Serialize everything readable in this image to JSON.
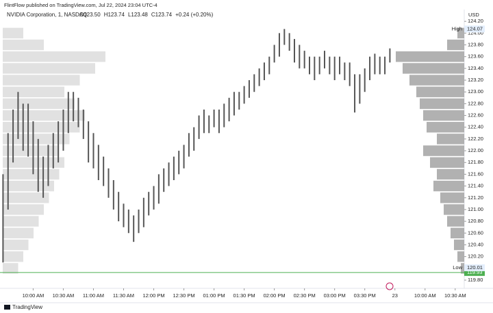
{
  "chart_data": {
    "type": "range-bar",
    "published": "FlintFlow published on TradingView.com, Jul 22, 2024 23:04 UTC-4",
    "symbol": "NVIDIA Corporation, 1, NASDAQ",
    "ohlc_text": [
      "O123.50",
      "H123.74",
      "L123.48",
      "C123.74",
      "+0.24 (+0.20%)"
    ],
    "currency": "USD",
    "footer": "TradingView",
    "color": "#555555",
    "x": [
      0,
      5,
      10,
      15,
      20,
      25,
      30,
      35,
      40,
      45,
      50,
      55,
      60,
      65,
      70,
      75,
      80,
      85,
      90,
      95,
      100,
      105,
      110,
      115,
      120,
      125,
      130,
      135,
      140,
      145,
      150,
      155,
      160,
      165,
      170,
      175,
      180,
      185,
      190,
      195,
      200,
      205,
      210,
      215,
      220,
      225,
      230,
      235,
      240,
      245,
      250,
      255,
      260,
      265,
      270,
      275,
      280,
      285,
      290,
      295,
      300,
      305,
      310,
      315,
      320,
      325,
      330,
      335,
      340,
      345,
      350,
      355,
      360,
      365,
      370,
      375,
      380,
      385
    ],
    "low": [
      120.1,
      121.0,
      121.8,
      122.2,
      122.0,
      121.9,
      121.6,
      121.3,
      121.2,
      121.4,
      121.7,
      121.8,
      122.0,
      122.3,
      122.5,
      122.4,
      122.2,
      121.8,
      121.7,
      121.5,
      121.4,
      121.2,
      121.0,
      120.8,
      120.7,
      120.6,
      120.45,
      120.6,
      120.7,
      120.9,
      121.0,
      121.1,
      121.3,
      121.4,
      121.5,
      121.6,
      121.7,
      121.9,
      122.0,
      122.2,
      122.3,
      122.3,
      122.4,
      122.3,
      122.4,
      122.5,
      122.6,
      122.7,
      122.8,
      122.9,
      123.0,
      123.1,
      123.2,
      123.3,
      123.5,
      123.6,
      123.8,
      123.7,
      123.5,
      123.4,
      123.4,
      123.3,
      123.2,
      123.3,
      123.4,
      123.3,
      123.2,
      123.3,
      123.2,
      123.1,
      122.65,
      122.8,
      123.0,
      123.2,
      123.3,
      123.3,
      123.3,
      123.5
    ],
    "high": [
      121.6,
      122.3,
      122.7,
      123.0,
      122.8,
      122.8,
      122.5,
      122.2,
      121.9,
      122.1,
      122.3,
      122.5,
      122.7,
      123.0,
      123.0,
      122.9,
      122.7,
      122.5,
      122.3,
      122.1,
      121.9,
      121.7,
      121.5,
      121.3,
      121.1,
      121.0,
      120.9,
      121.0,
      121.2,
      121.3,
      121.4,
      121.6,
      121.7,
      121.8,
      121.9,
      122.0,
      122.1,
      122.3,
      122.4,
      122.6,
      122.7,
      122.6,
      122.7,
      122.7,
      122.8,
      122.9,
      123.0,
      123.0,
      123.1,
      123.2,
      123.3,
      123.4,
      123.5,
      123.6,
      123.8,
      124.0,
      124.07,
      124.0,
      123.9,
      123.8,
      123.7,
      123.6,
      123.6,
      123.6,
      123.7,
      123.6,
      123.6,
      123.6,
      123.5,
      123.5,
      123.3,
      123.3,
      123.4,
      123.6,
      123.65,
      123.6,
      123.6,
      123.74
    ],
    "xlim": [
      -3,
      459
    ],
    "xticks": [
      {
        "value": 30,
        "label": "10:00 AM"
      },
      {
        "value": 60,
        "label": "10:30 AM"
      },
      {
        "value": 90,
        "label": "11:00 AM"
      },
      {
        "value": 120,
        "label": "11:30 AM"
      },
      {
        "value": 150,
        "label": "12:00 PM"
      },
      {
        "value": 180,
        "label": "12:30 PM"
      },
      {
        "value": 210,
        "label": "01:00 PM"
      },
      {
        "value": 240,
        "label": "01:30 PM"
      },
      {
        "value": 270,
        "label": "02:00 PM"
      },
      {
        "value": 300,
        "label": "02:30 PM"
      },
      {
        "value": 330,
        "label": "03:00 PM"
      },
      {
        "value": 360,
        "label": "03:30 PM"
      },
      {
        "value": 390,
        "label": "23"
      },
      {
        "value": 420,
        "label": "10:00 AM"
      },
      {
        "value": 450,
        "label": "10:30 AM"
      }
    ],
    "ylim": [
      119.66,
      124.4
    ],
    "yticks": [
      {
        "value": 119.8,
        "label": "119.80"
      },
      {
        "value": 120,
        "label": "120.00"
      },
      {
        "value": 120.2,
        "label": "120.20"
      },
      {
        "value": 120.4,
        "label": "120.40"
      },
      {
        "value": 120.6,
        "label": "120.60"
      },
      {
        "value": 120.8,
        "label": "120.80"
      },
      {
        "value": 121,
        "label": "121.00"
      },
      {
        "value": 121.2,
        "label": "121.20"
      },
      {
        "value": 121.4,
        "label": "121.40"
      },
      {
        "value": 121.6,
        "label": "121.60"
      },
      {
        "value": 121.8,
        "label": "121.80"
      },
      {
        "value": 122,
        "label": "122.00"
      },
      {
        "value": 122.2,
        "label": "122.20"
      },
      {
        "value": 122.4,
        "label": "122.40"
      },
      {
        "value": 122.6,
        "label": "122.60"
      },
      {
        "value": 122.8,
        "label": "122.80"
      },
      {
        "value": 123,
        "label": "123.00"
      },
      {
        "value": 123.2,
        "label": "123.20"
      },
      {
        "value": 123.4,
        "label": "123.40"
      },
      {
        "value": 123.6,
        "label": "123.60"
      },
      {
        "value": 123.8,
        "label": "123.80"
      },
      {
        "value": 124,
        "label": "124.00"
      },
      {
        "value": 124.2,
        "label": "124.20"
      }
    ],
    "high_marker": {
      "label": "High",
      "value": 124.07
    },
    "low_marker": {
      "label": "Low",
      "value": 120.01
    },
    "line_marker": {
      "value": 119.93,
      "color": "#4caf50"
    },
    "profile": {
      "prices": [
        120,
        120.2,
        120.4,
        120.6,
        120.8,
        121,
        121.2,
        121.4,
        121.6,
        121.8,
        122,
        122.2,
        122.4,
        122.6,
        122.8,
        123,
        123.2,
        123.4,
        123.6,
        123.8,
        124
      ],
      "left": [
        15,
        20,
        25,
        30,
        35,
        40,
        45,
        50,
        55,
        60,
        55,
        65,
        75,
        80,
        70,
        60,
        75,
        90,
        100,
        40,
        20
      ],
      "right": [
        5,
        10,
        15,
        20,
        25,
        30,
        35,
        45,
        40,
        50,
        60,
        40,
        55,
        60,
        65,
        70,
        80,
        90,
        100,
        25,
        10
      ],
      "color": "#d9d9d9"
    }
  }
}
